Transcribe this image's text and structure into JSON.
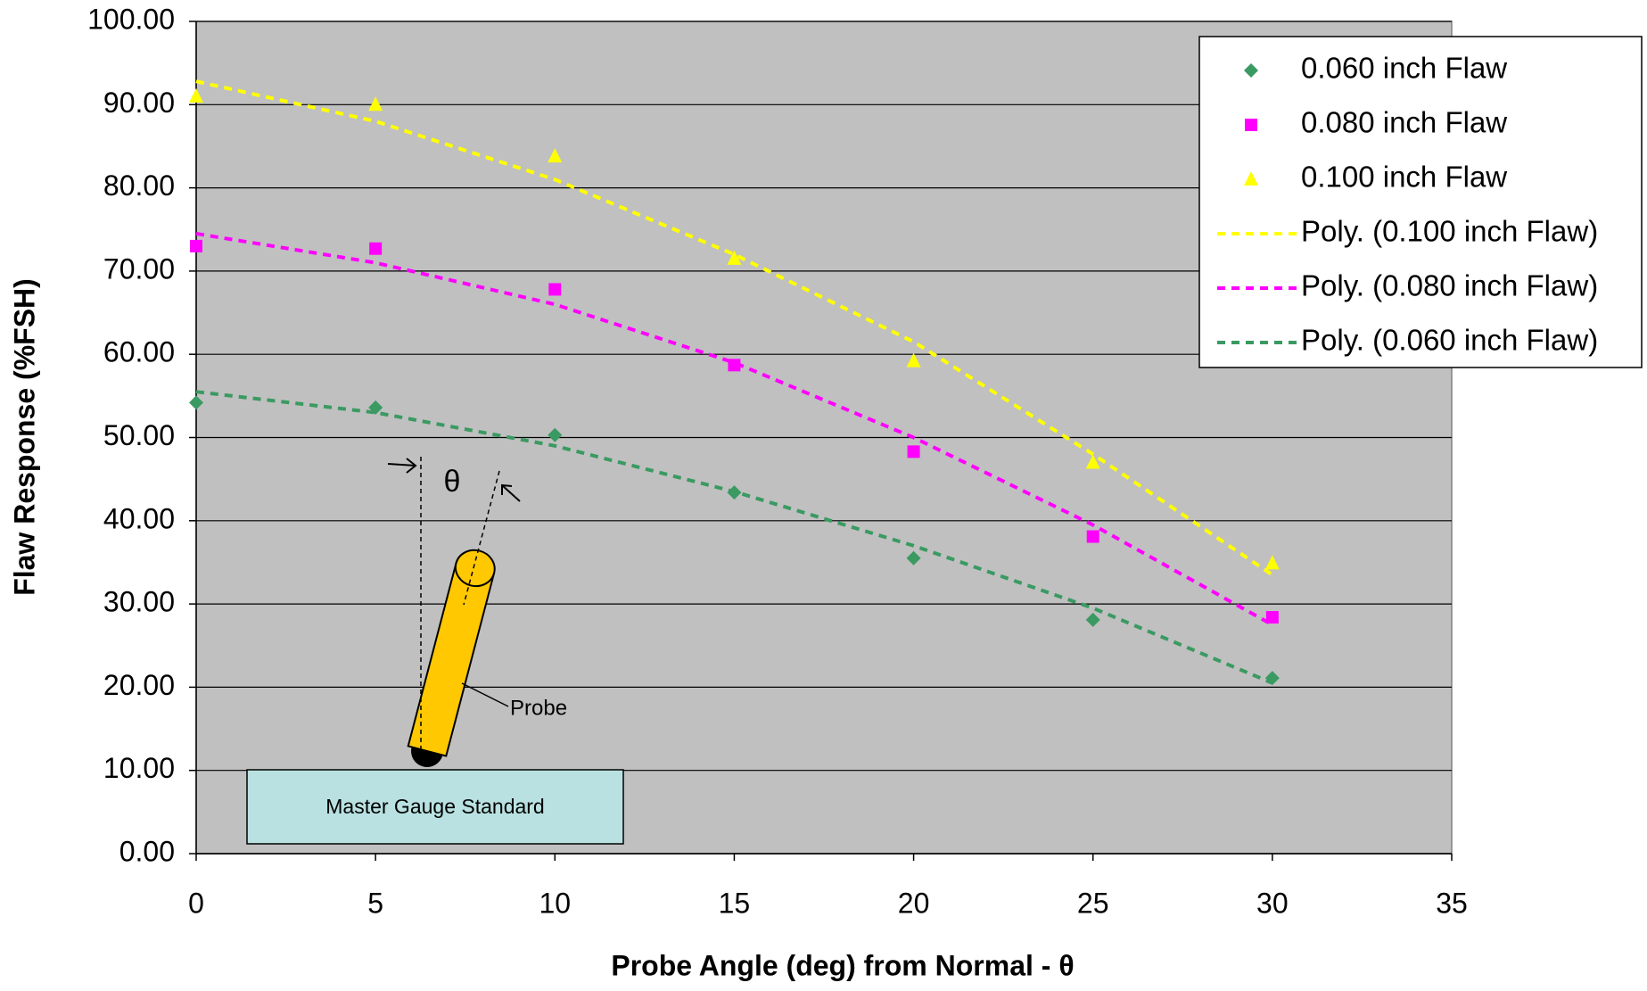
{
  "chart_data": {
    "type": "scatter",
    "x_label": "Probe Angle (deg) from Normal - θ",
    "y_label": "Flaw Response (%FSH)",
    "x": [
      0,
      5,
      10,
      15,
      20,
      25,
      30
    ],
    "series": [
      {
        "name": "0.060 inch Flaw",
        "type": "scatter",
        "marker": "diamond",
        "color": "#3a9a62",
        "values": [
          54.2,
          53.6,
          50.3,
          43.4,
          35.5,
          28.1,
          21.1
        ]
      },
      {
        "name": "0.080 inch Flaw",
        "type": "scatter",
        "marker": "square",
        "color": "#ff00ff",
        "values": [
          73.0,
          72.7,
          67.8,
          58.7,
          48.3,
          38.1,
          28.4
        ]
      },
      {
        "name": "0.100 inch Flaw",
        "type": "scatter",
        "marker": "triangle",
        "color": "#ffff00",
        "values": [
          91.0,
          90.0,
          83.8,
          71.5,
          59.2,
          47.0,
          34.9
        ]
      },
      {
        "name": "Poly. (0.100 inch Flaw)",
        "type": "line",
        "dashed": true,
        "color": "#ffff00",
        "values": [
          92.8,
          88.0,
          81.0,
          72.0,
          61.5,
          48.0,
          33.5
        ]
      },
      {
        "name": "Poly. (0.080 inch Flaw)",
        "type": "line",
        "dashed": true,
        "color": "#ff00ff",
        "values": [
          74.5,
          71.0,
          66.0,
          59.0,
          50.0,
          39.5,
          27.5
        ]
      },
      {
        "name": "Poly. (0.060 inch Flaw)",
        "type": "line",
        "dashed": true,
        "color": "#3a9a62",
        "values": [
          55.5,
          53.0,
          49.0,
          43.5,
          37.0,
          29.5,
          20.5
        ]
      }
    ],
    "xlim": [
      0,
      35
    ],
    "xticks": [
      0,
      5,
      10,
      15,
      20,
      25,
      30,
      35
    ],
    "ylim": [
      0,
      100
    ],
    "yticks": [
      {
        "value": 0,
        "label": "0.00"
      },
      {
        "value": 10,
        "label": "10.00"
      },
      {
        "value": 20,
        "label": "20.00"
      },
      {
        "value": 30,
        "label": "30.00"
      },
      {
        "value": 40,
        "label": "40.00"
      },
      {
        "value": 50,
        "label": "50.00"
      },
      {
        "value": 60,
        "label": "60.00"
      },
      {
        "value": 70,
        "label": "70.00"
      },
      {
        "value": 80,
        "label": "80.00"
      },
      {
        "value": 90,
        "label": "90.00"
      },
      {
        "value": 100,
        "label": "100.00"
      }
    ],
    "grid": true,
    "legend": "top-right",
    "plot_background": "#c0c0c0",
    "annotations": [
      "θ",
      "Probe",
      "Master Gauge Standard"
    ]
  }
}
